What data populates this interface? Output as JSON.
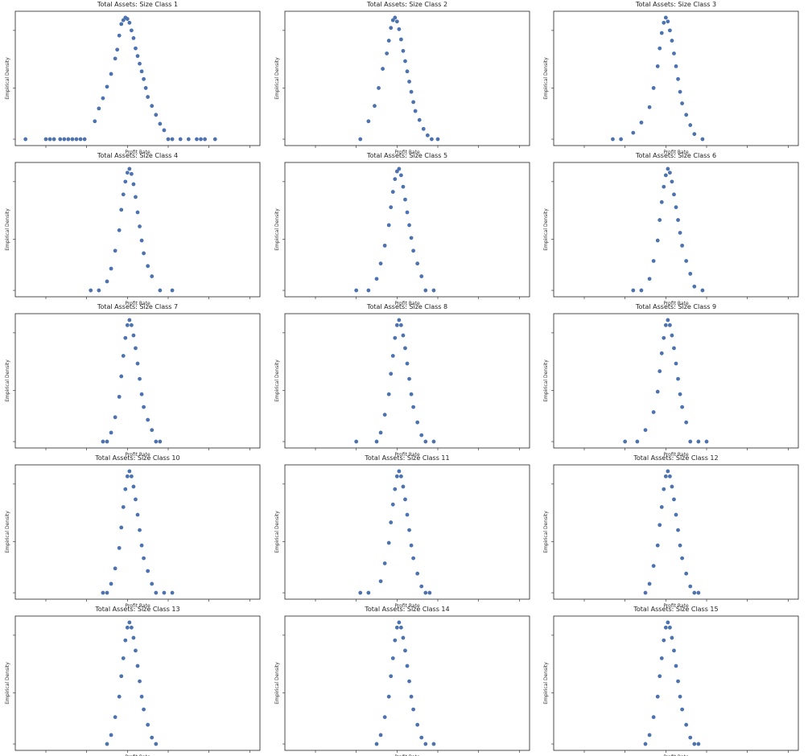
{
  "chart_data": [
    {
      "type": "scatter",
      "title": "Total Assets: Size Class 1",
      "xlabel": "Profit Rate",
      "ylabel": "Empirical Density",
      "x": [
        -0.5,
        -0.4,
        -0.38,
        -0.36,
        -0.33,
        -0.31,
        -0.29,
        -0.27,
        -0.25,
        -0.23,
        -0.21,
        -0.16,
        -0.14,
        -0.12,
        -0.1,
        -0.08,
        -0.06,
        -0.05,
        -0.04,
        -0.03,
        -0.02,
        -0.01,
        0,
        0.01,
        0.02,
        0.03,
        0.04,
        0.05,
        0.06,
        0.07,
        0.08,
        0.09,
        0.1,
        0.12,
        0.14,
        0.16,
        0.18,
        0.2,
        0.22,
        0.26,
        0.3,
        0.34,
        0.36,
        0.38,
        0.43
      ],
      "y": [
        0.05,
        0.05,
        0.05,
        0.05,
        0.05,
        0.05,
        0.05,
        0.05,
        0.05,
        0.05,
        0.05,
        0.19,
        0.29,
        0.37,
        0.46,
        0.56,
        0.68,
        0.75,
        0.86,
        0.95,
        0.98,
        1.0,
        0.99,
        0.96,
        0.9,
        0.84,
        0.76,
        0.7,
        0.64,
        0.58,
        0.52,
        0.45,
        0.38,
        0.31,
        0.24,
        0.17,
        0.12,
        0.05,
        0.05,
        0.05,
        0.05,
        0.05,
        0.05,
        0.05,
        0.05
      ]
    },
    {
      "type": "scatter",
      "title": "Total Assets: Size Class 2",
      "xlabel": "Profit Rate",
      "ylabel": "Empirical Density",
      "x": [
        -0.18,
        -0.14,
        -0.11,
        -0.09,
        -0.07,
        -0.05,
        -0.04,
        -0.03,
        -0.02,
        -0.01,
        0,
        0.01,
        0.02,
        0.03,
        0.04,
        0.05,
        0.06,
        0.07,
        0.08,
        0.09,
        0.11,
        0.13,
        0.15,
        0.17,
        0.2
      ],
      "y": [
        0.05,
        0.19,
        0.31,
        0.45,
        0.6,
        0.72,
        0.82,
        0.92,
        0.98,
        1.0,
        0.97,
        0.91,
        0.83,
        0.74,
        0.66,
        0.58,
        0.5,
        0.42,
        0.34,
        0.27,
        0.2,
        0.13,
        0.08,
        0.05,
        0.05
      ]
    },
    {
      "type": "scatter",
      "title": "Total Assets: Size Class 3",
      "xlabel": "Profit Rate",
      "ylabel": "Empirical Density",
      "x": [
        -0.26,
        -0.22,
        -0.16,
        -0.12,
        -0.08,
        -0.06,
        -0.04,
        -0.03,
        -0.02,
        -0.01,
        0,
        0.01,
        0.02,
        0.03,
        0.04,
        0.05,
        0.06,
        0.07,
        0.08,
        0.1,
        0.12,
        0.14,
        0.18
      ],
      "y": [
        0.05,
        0.05,
        0.1,
        0.18,
        0.3,
        0.45,
        0.62,
        0.76,
        0.88,
        0.96,
        1.0,
        0.97,
        0.9,
        0.82,
        0.72,
        0.62,
        0.52,
        0.42,
        0.33,
        0.24,
        0.16,
        0.09,
        0.05
      ]
    },
    {
      "type": "scatter",
      "title": "Total Assets: Size Class 4",
      "xlabel": "Profit Rate",
      "ylabel": "Empirical Density",
      "x": [
        -0.18,
        -0.14,
        -0.1,
        -0.08,
        -0.06,
        -0.04,
        -0.03,
        -0.02,
        -0.01,
        0,
        0.01,
        0.02,
        0.03,
        0.04,
        0.05,
        0.06,
        0.07,
        0.08,
        0.1,
        0.12,
        0.16,
        0.22
      ],
      "y": [
        0.05,
        0.05,
        0.12,
        0.22,
        0.36,
        0.52,
        0.68,
        0.8,
        0.9,
        0.97,
        1.0,
        0.96,
        0.88,
        0.78,
        0.66,
        0.55,
        0.44,
        0.34,
        0.24,
        0.16,
        0.05,
        0.05
      ]
    },
    {
      "type": "scatter",
      "title": "Total Assets: Size Class 5",
      "xlabel": "Profit Rate",
      "ylabel": "Empirical Density",
      "x": [
        -0.2,
        -0.14,
        -0.1,
        -0.08,
        -0.06,
        -0.04,
        -0.03,
        -0.02,
        -0.01,
        0,
        0.01,
        0.02,
        0.03,
        0.04,
        0.05,
        0.06,
        0.07,
        0.08,
        0.1,
        0.12,
        0.14,
        0.18
      ],
      "y": [
        0.05,
        0.05,
        0.14,
        0.26,
        0.4,
        0.56,
        0.7,
        0.82,
        0.92,
        0.98,
        1.0,
        0.95,
        0.86,
        0.76,
        0.66,
        0.56,
        0.46,
        0.36,
        0.26,
        0.16,
        0.05,
        0.05
      ]
    },
    {
      "type": "scatter",
      "title": "Total Assets: Size Class 6",
      "xlabel": "Profit Rate",
      "ylabel": "Empirical Density",
      "x": [
        -0.16,
        -0.12,
        -0.08,
        -0.06,
        -0.04,
        -0.03,
        -0.02,
        -0.01,
        0,
        0.01,
        0.02,
        0.03,
        0.04,
        0.05,
        0.06,
        0.07,
        0.08,
        0.1,
        0.12,
        0.14,
        0.18
      ],
      "y": [
        0.05,
        0.05,
        0.14,
        0.28,
        0.44,
        0.6,
        0.74,
        0.86,
        0.95,
        1.0,
        0.97,
        0.9,
        0.8,
        0.7,
        0.6,
        0.5,
        0.4,
        0.28,
        0.18,
        0.08,
        0.05
      ]
    },
    {
      "type": "scatter",
      "title": "Total Assets: Size Class 7",
      "xlabel": "Profit Rate",
      "ylabel": "Empirical Density",
      "x": [
        -0.12,
        -0.1,
        -0.08,
        -0.06,
        -0.04,
        -0.03,
        -0.02,
        -0.01,
        0,
        0.01,
        0.02,
        0.03,
        0.04,
        0.05,
        0.06,
        0.07,
        0.08,
        0.1,
        0.12,
        0.14,
        0.16
      ],
      "y": [
        0.05,
        0.05,
        0.12,
        0.24,
        0.4,
        0.56,
        0.72,
        0.86,
        0.96,
        1.0,
        0.96,
        0.88,
        0.78,
        0.66,
        0.54,
        0.42,
        0.32,
        0.22,
        0.14,
        0.05,
        0.05
      ]
    },
    {
      "type": "scatter",
      "title": "Total Assets: Size Class 8",
      "xlabel": "Profit Rate",
      "ylabel": "Empirical Density",
      "x": [
        -0.2,
        -0.1,
        -0.08,
        -0.06,
        -0.04,
        -0.03,
        -0.02,
        -0.01,
        0,
        0.01,
        0.02,
        0.03,
        0.04,
        0.05,
        0.06,
        0.07,
        0.08,
        0.1,
        0.12,
        0.14,
        0.18
      ],
      "y": [
        0.05,
        0.05,
        0.12,
        0.26,
        0.42,
        0.58,
        0.72,
        0.86,
        0.96,
        1.0,
        0.96,
        0.88,
        0.78,
        0.66,
        0.54,
        0.42,
        0.32,
        0.2,
        0.1,
        0.05,
        0.05
      ]
    },
    {
      "type": "scatter",
      "title": "Total Assets: Size Class 9",
      "xlabel": "Profit Rate",
      "ylabel": "Empirical Density",
      "x": [
        -0.2,
        -0.14,
        -0.1,
        -0.06,
        -0.04,
        -0.03,
        -0.02,
        -0.01,
        0,
        0.01,
        0.02,
        0.03,
        0.04,
        0.05,
        0.06,
        0.07,
        0.08,
        0.1,
        0.12,
        0.16,
        0.2
      ],
      "y": [
        0.05,
        0.05,
        0.14,
        0.28,
        0.44,
        0.6,
        0.74,
        0.86,
        0.96,
        1.0,
        0.96,
        0.88,
        0.78,
        0.66,
        0.54,
        0.42,
        0.32,
        0.2,
        0.05,
        0.05,
        0.05
      ]
    },
    {
      "type": "scatter",
      "title": "Total Assets: Size Class 10",
      "xlabel": "Profit Rate",
      "ylabel": "Empirical Density",
      "x": [
        -0.12,
        -0.1,
        -0.08,
        -0.06,
        -0.04,
        -0.03,
        -0.02,
        -0.01,
        0,
        0.01,
        0.02,
        0.03,
        0.04,
        0.05,
        0.06,
        0.07,
        0.08,
        0.1,
        0.12,
        0.14,
        0.18,
        0.22
      ],
      "y": [
        0.05,
        0.05,
        0.12,
        0.24,
        0.4,
        0.56,
        0.72,
        0.86,
        0.96,
        1.0,
        0.96,
        0.88,
        0.78,
        0.66,
        0.54,
        0.42,
        0.32,
        0.22,
        0.12,
        0.05,
        0.05,
        0.05
      ]
    },
    {
      "type": "scatter",
      "title": "Total Assets: Size Class 11",
      "xlabel": "Profit Rate",
      "ylabel": "Empirical Density",
      "x": [
        -0.18,
        -0.14,
        -0.08,
        -0.06,
        -0.04,
        -0.03,
        -0.02,
        -0.01,
        0,
        0.01,
        0.02,
        0.03,
        0.04,
        0.05,
        0.06,
        0.07,
        0.08,
        0.1,
        0.12,
        0.14,
        0.16
      ],
      "y": [
        0.05,
        0.05,
        0.14,
        0.28,
        0.44,
        0.6,
        0.74,
        0.86,
        0.96,
        1.0,
        0.96,
        0.88,
        0.78,
        0.66,
        0.54,
        0.42,
        0.32,
        0.2,
        0.1,
        0.05,
        0.05
      ]
    },
    {
      "type": "scatter",
      "title": "Total Assets: Size Class 12",
      "xlabel": "Profit Rate",
      "ylabel": "Empirical Density",
      "x": [
        -0.1,
        -0.08,
        -0.06,
        -0.04,
        -0.03,
        -0.02,
        -0.01,
        0,
        0.01,
        0.02,
        0.03,
        0.04,
        0.05,
        0.06,
        0.07,
        0.08,
        0.1,
        0.12,
        0.14,
        0.16
      ],
      "y": [
        0.05,
        0.12,
        0.26,
        0.42,
        0.58,
        0.72,
        0.86,
        0.96,
        1.0,
        0.96,
        0.88,
        0.78,
        0.66,
        0.54,
        0.42,
        0.32,
        0.2,
        0.1,
        0.05,
        0.05
      ]
    },
    {
      "type": "scatter",
      "title": "Total Assets: Size Class 13",
      "xlabel": "Profit Rate",
      "ylabel": "Empirical Density",
      "x": [
        -0.1,
        -0.08,
        -0.06,
        -0.04,
        -0.03,
        -0.02,
        -0.01,
        0,
        0.01,
        0.02,
        0.03,
        0.04,
        0.05,
        0.06,
        0.07,
        0.08,
        0.1,
        0.12,
        0.14
      ],
      "y": [
        0.05,
        0.12,
        0.26,
        0.42,
        0.58,
        0.72,
        0.86,
        0.96,
        1.0,
        0.96,
        0.88,
        0.78,
        0.66,
        0.54,
        0.42,
        0.32,
        0.2,
        0.1,
        0.05
      ]
    },
    {
      "type": "scatter",
      "title": "Total Assets: Size Class 14",
      "xlabel": "Profit Rate",
      "ylabel": "Empirical Density",
      "x": [
        -0.1,
        -0.08,
        -0.06,
        -0.04,
        -0.03,
        -0.02,
        -0.01,
        0,
        0.01,
        0.02,
        0.03,
        0.04,
        0.05,
        0.06,
        0.07,
        0.08,
        0.1,
        0.12,
        0.14,
        0.18
      ],
      "y": [
        0.05,
        0.12,
        0.26,
        0.42,
        0.58,
        0.72,
        0.86,
        0.96,
        1.0,
        0.96,
        0.88,
        0.78,
        0.66,
        0.54,
        0.42,
        0.32,
        0.2,
        0.1,
        0.05,
        0.05
      ]
    },
    {
      "type": "scatter",
      "title": "Total Assets: Size Class 15",
      "xlabel": "Profit Rate",
      "ylabel": "Empirical Density",
      "x": [
        -0.1,
        -0.08,
        -0.06,
        -0.04,
        -0.03,
        -0.02,
        -0.01,
        0,
        0.01,
        0.02,
        0.03,
        0.04,
        0.05,
        0.06,
        0.07,
        0.08,
        0.1,
        0.12,
        0.14,
        0.16
      ],
      "y": [
        0.05,
        0.12,
        0.26,
        0.42,
        0.58,
        0.72,
        0.86,
        0.96,
        1.0,
        0.96,
        0.88,
        0.78,
        0.66,
        0.54,
        0.42,
        0.32,
        0.2,
        0.1,
        0.05,
        0.05
      ]
    }
  ],
  "colors": {
    "dot": "#4c72b0"
  }
}
